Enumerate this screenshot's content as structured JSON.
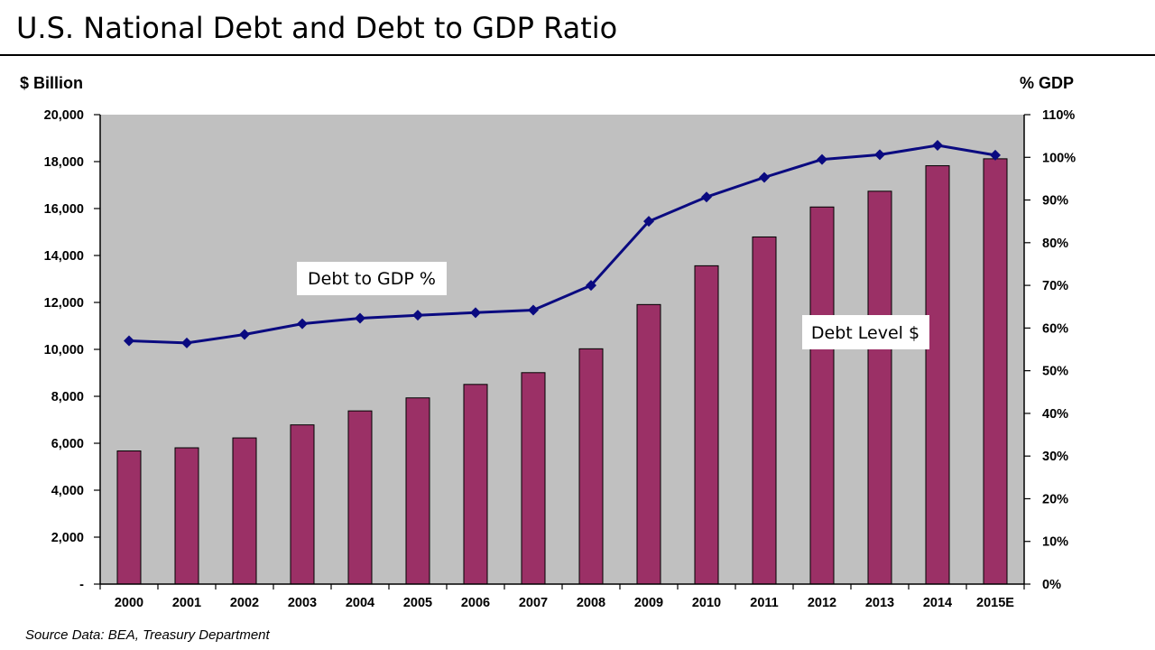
{
  "title": "U.S. National Debt and Debt to GDP Ratio",
  "source": "Source Data:  BEA, Treasury Department",
  "colors": {
    "bar": "#9b3066",
    "line": "#0a0a80",
    "plot_bg": "#c0c0c0"
  },
  "chart_data": {
    "type": "bar",
    "categories": [
      "2000",
      "2001",
      "2002",
      "2003",
      "2004",
      "2005",
      "2006",
      "2007",
      "2008",
      "2009",
      "2010",
      "2011",
      "2012",
      "2013",
      "2014",
      "2015E"
    ],
    "series": [
      {
        "name": "Debt Level $",
        "type": "bar",
        "axis": "left",
        "values": [
          5674,
          5807,
          6228,
          6783,
          7379,
          7933,
          8507,
          9008,
          10025,
          11910,
          13562,
          14790,
          16066,
          16738,
          17824,
          18120
        ]
      },
      {
        "name": "Debt to GDP %",
        "type": "line",
        "axis": "right",
        "values": [
          57,
          56.5,
          58.5,
          61,
          62.3,
          63,
          63.6,
          64.2,
          70,
          85,
          90.7,
          95.3,
          99.5,
          100.6,
          102.8,
          100.5
        ]
      }
    ],
    "y_left": {
      "label": "$ Billion",
      "ylim": [
        0,
        20000
      ],
      "ticks": [
        "-",
        "2,000",
        "4,000",
        "6,000",
        "8,000",
        "10,000",
        "12,000",
        "14,000",
        "16,000",
        "18,000",
        "20,000"
      ]
    },
    "y_right": {
      "label": "% GDP",
      "ylim": [
        0,
        110
      ],
      "ticks": [
        "0%",
        "10%",
        "20%",
        "30%",
        "40%",
        "50%",
        "60%",
        "70%",
        "80%",
        "90%",
        "100%",
        "110%"
      ]
    },
    "annotations": [
      "Debt to GDP %",
      "Debt Level $"
    ],
    "grid": false,
    "legend": "none"
  }
}
